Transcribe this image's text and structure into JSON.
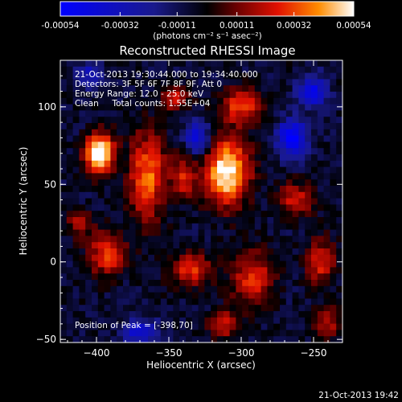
{
  "colorbar": {
    "ticks": [
      "-0.00054",
      "-0.00032",
      "-0.00011",
      "0.00011",
      "0.00032",
      "0.00054"
    ],
    "tick_values": [
      -0.00054,
      -0.00032,
      -0.00011,
      0.00011,
      0.00032,
      0.00054
    ],
    "range": [
      -0.00054,
      0.00054
    ],
    "unit_label": "(photons cm⁻² s⁻¹ asec⁻²)",
    "colors": [
      "#0000ff",
      "#1a1a8c",
      "#000000",
      "#6a0000",
      "#e01000",
      "#ff8c00",
      "#ffffff"
    ]
  },
  "chart_data": {
    "type": "heatmap",
    "title": "Reconstructed RHESSI Image",
    "xlabel": "Heliocentric X (arcsec)",
    "ylabel": "Heliocentric Y (arcsec)",
    "xlim": [
      -425,
      -230
    ],
    "ylim": [
      -52,
      130
    ],
    "xticks": [
      -400,
      -350,
      -300,
      -250
    ],
    "xtick_labels": [
      "−400",
      "−350",
      "−300",
      "−250"
    ],
    "yticks": [
      -50,
      0,
      50,
      100
    ],
    "ytick_labels": [
      "−50",
      "0",
      "50",
      "100"
    ],
    "annotations": [
      "21-Oct-2013 19:30:44.000 to 19:34:40.000",
      "Detectors: 3F 5F 6F 7F 8F 9F, Att 0",
      "Energy Range: 12.0 - 25.0 keV",
      "Clean     Total counts: 1.55E+04"
    ],
    "peak_label": "Position of Peak = [-398,70]",
    "peak": {
      "x": -398,
      "y": 70
    },
    "hot_spots": [
      {
        "x": -398,
        "y": 70,
        "sx": 7,
        "sy": 9,
        "amp": 1.15
      },
      {
        "x": -310,
        "y": 58,
        "sx": 11,
        "sy": 15,
        "amp": 1.05
      },
      {
        "x": -365,
        "y": 55,
        "sx": 9,
        "sy": 20,
        "amp": 0.72
      },
      {
        "x": -340,
        "y": 55,
        "sx": 6,
        "sy": 9,
        "amp": 0.55
      },
      {
        "x": -300,
        "y": 100,
        "sx": 10,
        "sy": 8,
        "amp": 0.6
      },
      {
        "x": -345,
        "y": 105,
        "sx": 7,
        "sy": 6,
        "amp": 0.45
      },
      {
        "x": -393,
        "y": 5,
        "sx": 9,
        "sy": 10,
        "amp": 0.6
      },
      {
        "x": -335,
        "y": -5,
        "sx": 10,
        "sy": 8,
        "amp": 0.55
      },
      {
        "x": -292,
        "y": -10,
        "sx": 10,
        "sy": 12,
        "amp": 0.6
      },
      {
        "x": -262,
        "y": 40,
        "sx": 8,
        "sy": 8,
        "amp": 0.5
      },
      {
        "x": -245,
        "y": 0,
        "sx": 7,
        "sy": 10,
        "amp": 0.55
      },
      {
        "x": -240,
        "y": -40,
        "sx": 7,
        "sy": 7,
        "amp": 0.45
      },
      {
        "x": -310,
        "y": -40,
        "sx": 8,
        "sy": 7,
        "amp": 0.45
      },
      {
        "x": -412,
        "y": 25,
        "sx": 6,
        "sy": 6,
        "amp": 0.4
      }
    ],
    "cold_spots": [
      {
        "x": -265,
        "y": 80,
        "sx": 7,
        "sy": 8,
        "amp": 0.85
      },
      {
        "x": -330,
        "y": 80,
        "sx": 6,
        "sy": 8,
        "amp": 0.65
      },
      {
        "x": -250,
        "y": 110,
        "sx": 7,
        "sy": 7,
        "amp": 0.65
      },
      {
        "x": -370,
        "y": -45,
        "sx": 8,
        "sy": 6,
        "amp": 0.55
      },
      {
        "x": -405,
        "y": 120,
        "sx": 6,
        "sy": 6,
        "amp": 0.45
      }
    ],
    "grid": false
  },
  "footer": {
    "timestamp": "21-Oct-2013 19:42"
  }
}
